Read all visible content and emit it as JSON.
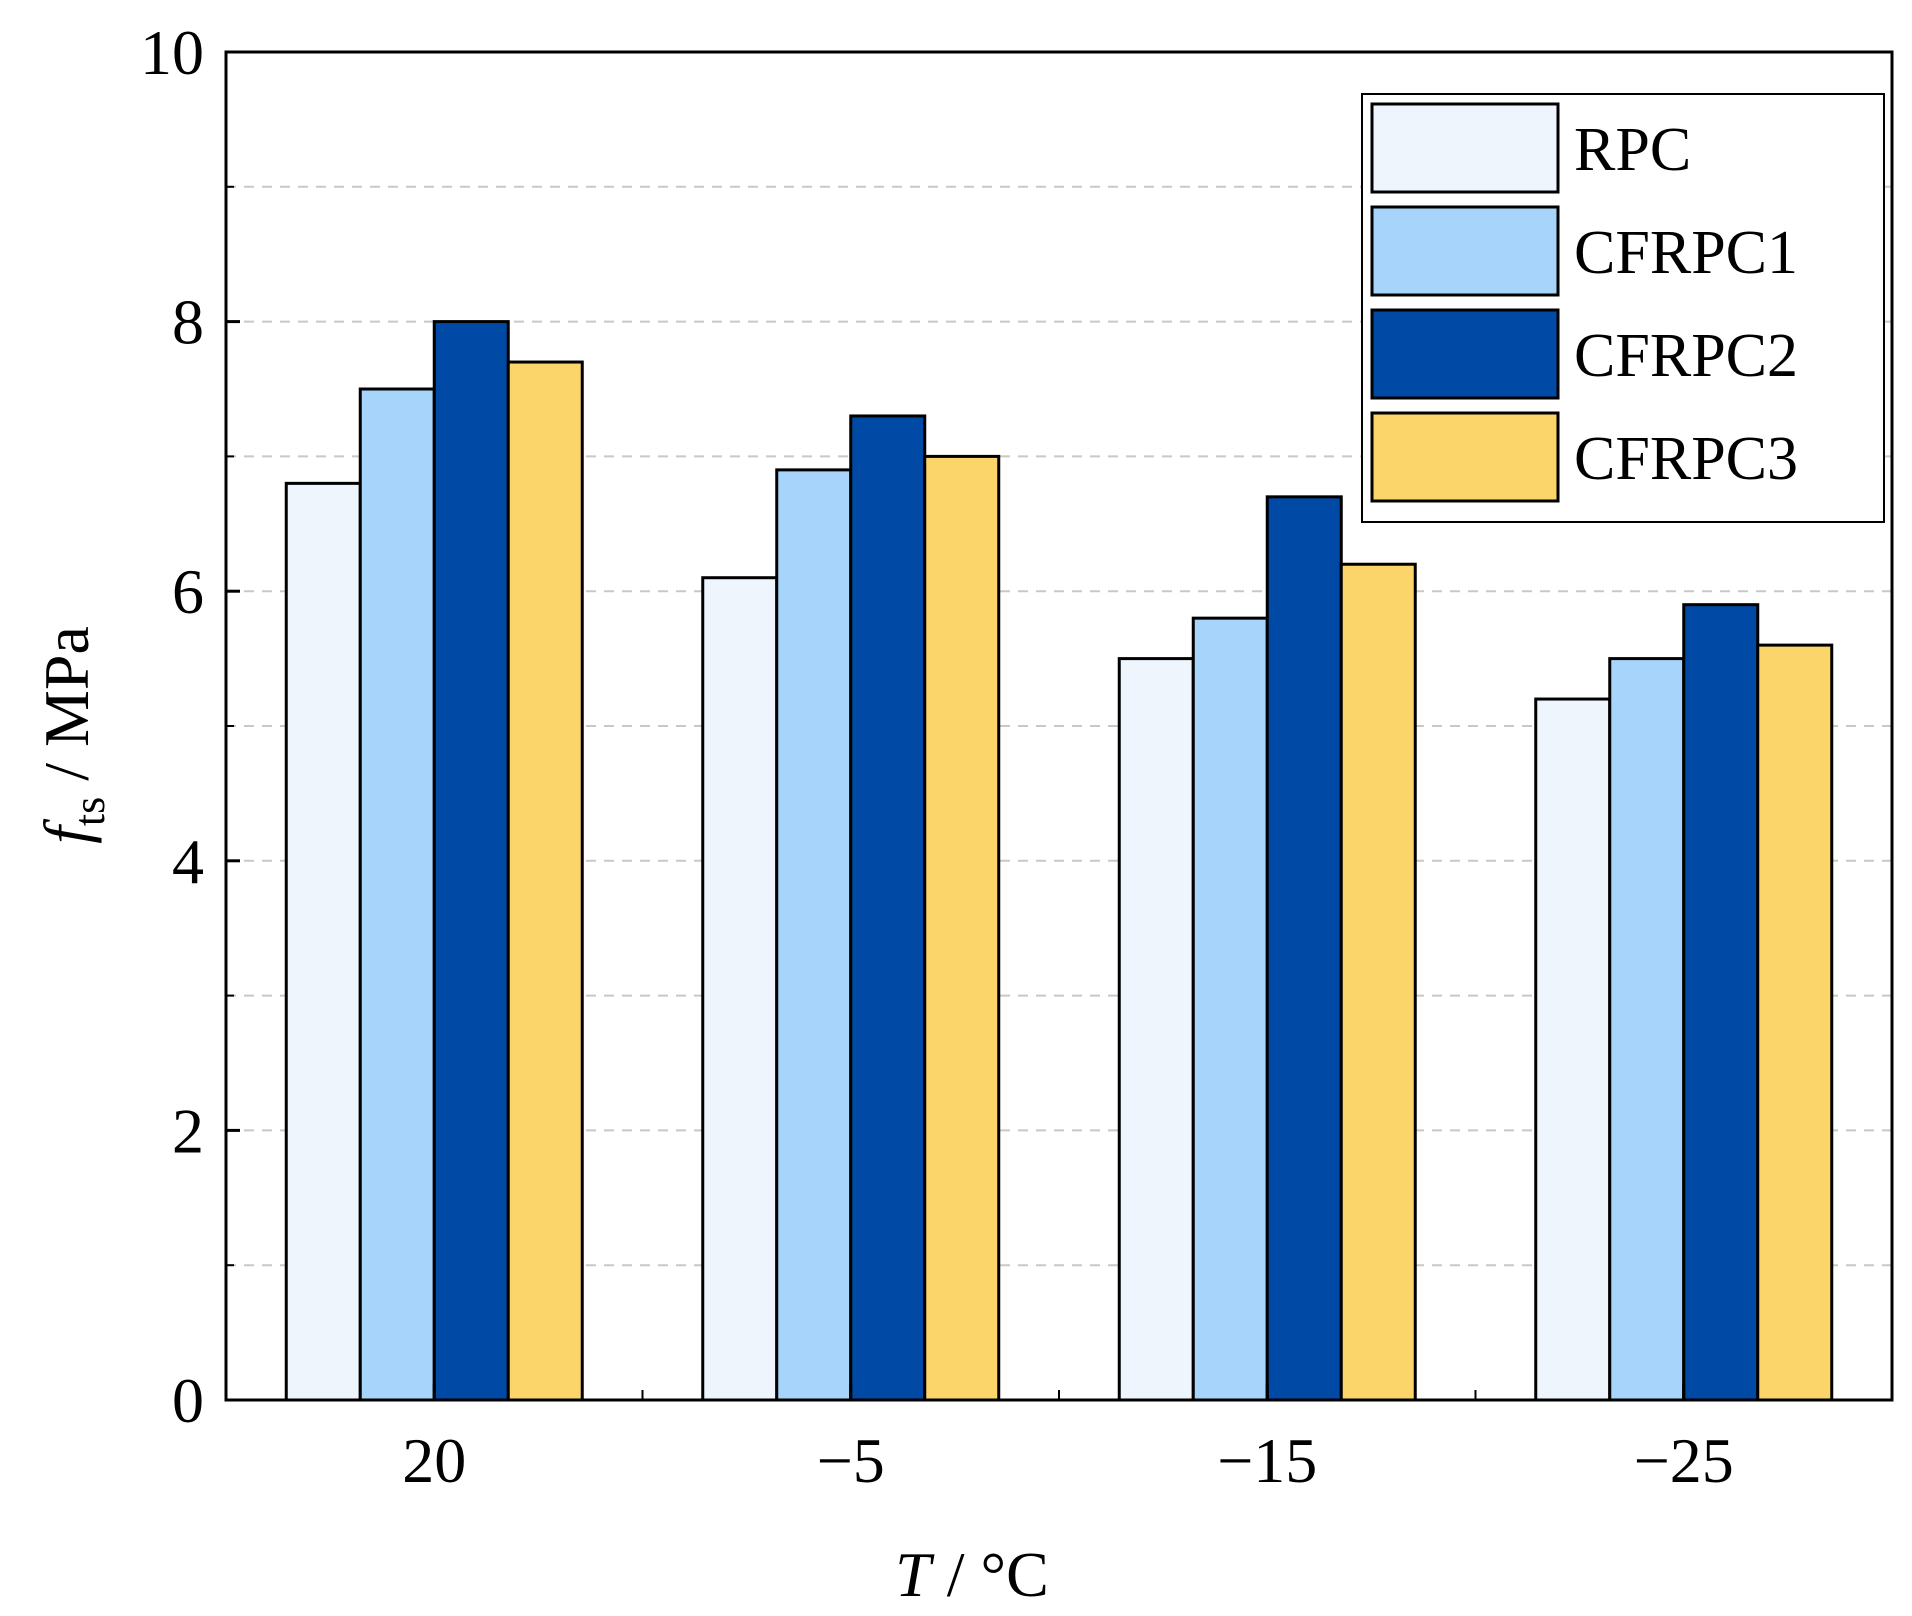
{
  "chart_data": {
    "type": "bar",
    "categories": [
      "20",
      "−5",
      "−15",
      "−25"
    ],
    "series": [
      {
        "name": "RPC",
        "values": [
          6.8,
          6.1,
          5.5,
          5.2
        ],
        "color": "#eef5fd"
      },
      {
        "name": "CFRPC1",
        "values": [
          7.5,
          6.9,
          5.8,
          5.5
        ],
        "color": "#a6d4fa"
      },
      {
        "name": "CFRPC2",
        "values": [
          8.0,
          7.3,
          6.7,
          5.9
        ],
        "color": "#004aa5"
      },
      {
        "name": "CFRPC3",
        "values": [
          7.7,
          7.0,
          6.2,
          5.6
        ],
        "color": "#fcd56a"
      }
    ],
    "yticks": [
      "0",
      "2",
      "4",
      "6",
      "8",
      "10"
    ],
    "ylim": [
      0,
      10
    ],
    "minor_gridlines_at": [
      1,
      3,
      5,
      7,
      9
    ],
    "grid": "dashed horizontal",
    "xlabel": {
      "symbol": "T",
      "unit": " / °C"
    },
    "ylabel": {
      "symbol": "f",
      "subscript": "ts",
      "unit": " / MPa"
    },
    "legend_position": "top-right"
  }
}
